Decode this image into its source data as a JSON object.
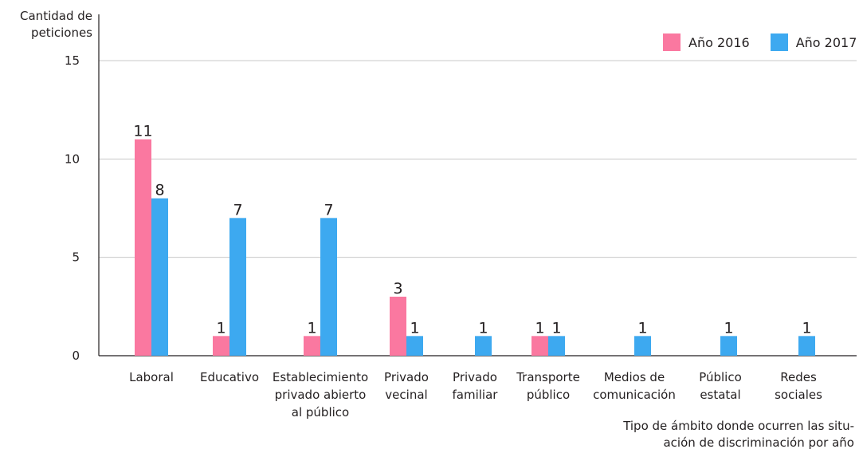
{
  "chart_data": {
    "type": "bar",
    "title": "",
    "ylabel_lines": [
      "Cantidad de",
      "peticiones"
    ],
    "xlabel_lines": [
      "Tipo de ámbito donde ocurren las situ-",
      "ación de discriminación por año"
    ],
    "ylim": [
      0,
      15
    ],
    "yticks": [
      0,
      5,
      10,
      15
    ],
    "grid": true,
    "legend_position": "top-right",
    "categories": [
      [
        "Laboral"
      ],
      [
        "Educativo"
      ],
      [
        "Establecimiento",
        "privado abierto",
        "al público"
      ],
      [
        "Privado",
        "vecinal"
      ],
      [
        "Privado",
        "familiar"
      ],
      [
        "Transporte",
        "público"
      ],
      [
        "Medios de",
        "comunicación"
      ],
      [
        "Público",
        "estatal"
      ],
      [
        "Redes",
        "sociales"
      ]
    ],
    "series": [
      {
        "name": "Año 2016",
        "color": "#fa78a0",
        "values": [
          11,
          1,
          1,
          3,
          null,
          1,
          null,
          null,
          null
        ]
      },
      {
        "name": "Año 2017",
        "color": "#3da9f0",
        "values": [
          8,
          7,
          7,
          1,
          1,
          1,
          1,
          1,
          1
        ]
      }
    ]
  }
}
